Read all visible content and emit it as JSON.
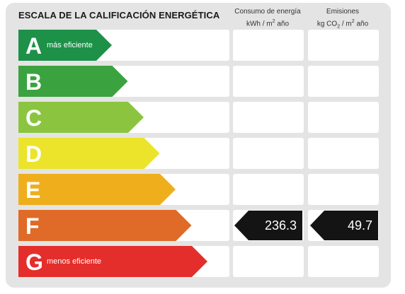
{
  "title": "ESCALA DE LA CALIFICACIÓN ENERGÉTICA",
  "columns": {
    "consumo_line1": "Consumo de energía",
    "consumo_line2_pre": "kWh / m",
    "consumo_line2_sup": "2",
    "consumo_line2_post": " año",
    "emisiones_line1": "Emisiones",
    "emisiones_line2_pre": "kg CO",
    "emisiones_line2_sub": "2",
    "emisiones_line2_mid": " / m",
    "emisiones_line2_sup": "2",
    "emisiones_line2_post": " año"
  },
  "chart_data": {
    "type": "table",
    "classes": [
      {
        "letter": "A",
        "note": "más eficiente",
        "color": "#1d9148",
        "rank": 1
      },
      {
        "letter": "B",
        "note": "",
        "color": "#3aa33f",
        "rank": 2
      },
      {
        "letter": "C",
        "note": "",
        "color": "#8bc540",
        "rank": 3
      },
      {
        "letter": "D",
        "note": "",
        "color": "#ebe42a",
        "rank": 4
      },
      {
        "letter": "E",
        "note": "",
        "color": "#efae1c",
        "rank": 5
      },
      {
        "letter": "F",
        "note": "",
        "color": "#e06a27",
        "rank": 6
      },
      {
        "letter": "G",
        "note": "menos eficiente",
        "color": "#e42e2b",
        "rank": 7
      }
    ],
    "consumo": {
      "class": "F",
      "value": "236.3"
    },
    "emisiones": {
      "class": "F",
      "value": "49.7"
    }
  }
}
